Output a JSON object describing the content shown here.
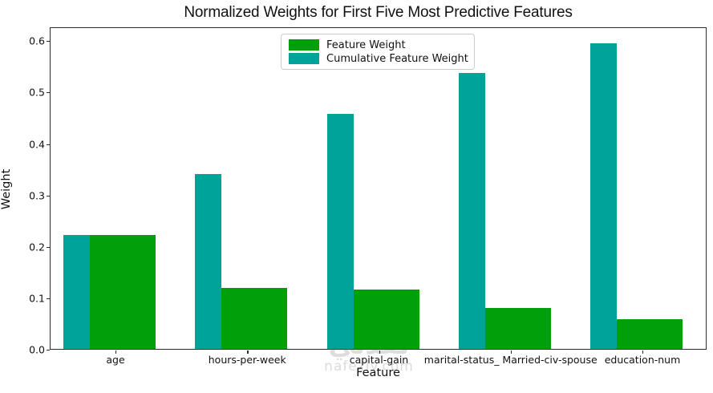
{
  "title": "Normalized Weights for First Five Most Predictive Features",
  "colors": {
    "feature_weight": "#00a00a",
    "cumulative_weight": "#00a398",
    "spine": "#2b2b2b",
    "text": "#111111",
    "watermark_gray": "#d2d2d2",
    "watermark_teal": "#00a398"
  },
  "chart_data": {
    "type": "bar",
    "title": "Normalized Weights for First Five Most Predictive Features",
    "xlabel": "Feature",
    "ylabel": "Weight",
    "categories": [
      "age",
      "hours-per-week",
      "capital-gain",
      "marital-status_ Married-civ-spouse",
      "education-num"
    ],
    "series": [
      {
        "name": "Feature Weight",
        "color": "#00a00a",
        "values": [
          0.222,
          0.118,
          0.116,
          0.08,
          0.058
        ]
      },
      {
        "name": "Cumulative Feature Weight",
        "color": "#00a398",
        "values": [
          0.222,
          0.34,
          0.457,
          0.537,
          0.595
        ]
      }
    ],
    "ytick_labels": [
      "0.0",
      "0.1",
      "0.2",
      "0.3",
      "0.4",
      "0.5",
      "0.6"
    ],
    "ytick_values": [
      0.0,
      0.1,
      0.2,
      0.3,
      0.4,
      0.5,
      0.6
    ],
    "ylim": [
      0,
      0.627
    ],
    "legend_position": "upper center",
    "grid": false
  },
  "legend": {
    "items": [
      {
        "label": "Feature Weight",
        "color": "#00a00a"
      },
      {
        "label": "Cumulative Feature Weight",
        "color": "#00a398"
      }
    ]
  },
  "watermark": {
    "logo_text": "نفذلي",
    "site": "nafezly.com"
  }
}
